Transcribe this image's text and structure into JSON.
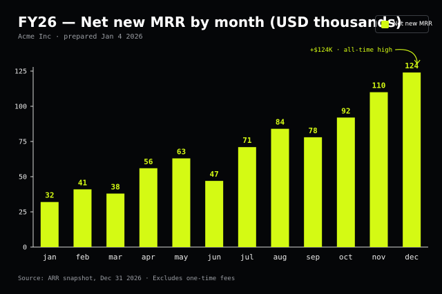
{
  "header": {
    "title": "FY26 — Net new MRR by month (USD thousands)",
    "subtitle": "Acme Inc · prepared Jan 4 2026"
  },
  "legend": {
    "label": "Net new MRR"
  },
  "footer": {
    "source": "Source: ARR snapshot, Dec 31 2026 · Excludes one-time fees"
  },
  "colors": {
    "bar": "#d4fa14",
    "background": "#050608",
    "axis": "#d9d9d9",
    "text": "#ffffff"
  },
  "chart_data": {
    "type": "bar",
    "categories": [
      "jan",
      "feb",
      "mar",
      "apr",
      "may",
      "jun",
      "jul",
      "aug",
      "sep",
      "oct",
      "nov",
      "dec"
    ],
    "series": [
      {
        "name": "Net new MRR",
        "values": [
          32,
          41,
          38,
          56,
          63,
          47,
          71,
          84,
          78,
          92,
          110,
          124
        ]
      }
    ],
    "data_labels": [
      "32",
      "41",
      "38",
      "56",
      "63",
      "47",
      "71",
      "84",
      "78",
      "92",
      "110",
      "124"
    ],
    "yticks": [
      0,
      25,
      50,
      75,
      100,
      125
    ],
    "ylim": [
      0,
      125
    ],
    "grid": false,
    "legend_position": "top-right",
    "annotation": {
      "text": "+$124K · all-time high",
      "category": "dec"
    }
  }
}
